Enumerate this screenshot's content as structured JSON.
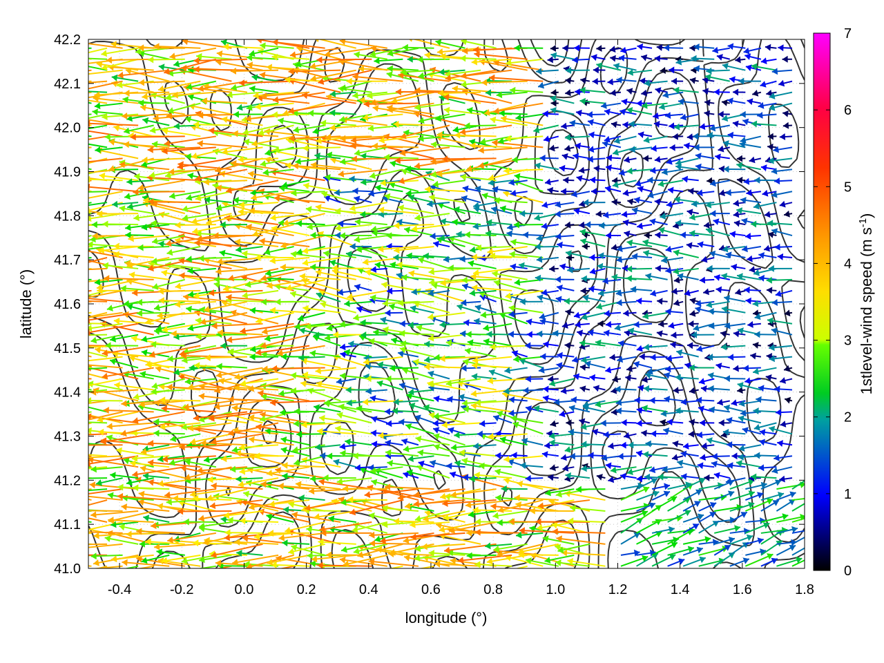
{
  "chart_data": {
    "type": "vector-field",
    "xlabel": "longitude (°)",
    "ylabel": "latitude (°)",
    "xlim": [
      -0.5,
      1.8
    ],
    "ylim": [
      41.0,
      42.2
    ],
    "x_ticks": [
      "-0.4",
      "-0.2",
      "0.0",
      "0.2",
      "0.4",
      "0.6",
      "0.8",
      "1.0",
      "1.2",
      "1.4",
      "1.6",
      "1.8"
    ],
    "y_ticks": [
      "41.0",
      "41.1",
      "41.2",
      "41.3",
      "41.4",
      "41.5",
      "41.6",
      "41.7",
      "41.8",
      "41.9",
      "42.0",
      "42.1",
      "42.2"
    ],
    "grid": true,
    "colorbar": {
      "label_main": "1stlevel-wind speed (m s",
      "label_sup": "-1",
      "label_end": ")",
      "range": [
        0,
        7
      ],
      "ticks": [
        "0",
        "1",
        "2",
        "3",
        "4",
        "5",
        "6",
        "7"
      ],
      "colors": [
        "#000000",
        "#0000ff",
        "#00a0a0",
        "#00dd00",
        "#ffff00",
        "#ff9900",
        "#ff0000",
        "#ff00ff"
      ]
    },
    "description_free": true,
    "wind_field_summary": [
      {
        "region": "west",
        "x_range": [
          -0.5,
          0.3
        ],
        "y_range": [
          41.0,
          42.2
        ],
        "direction_deg": 180,
        "speed_range": [
          2.0,
          4.8
        ]
      },
      {
        "region": "center",
        "x_range": [
          0.3,
          1.0
        ],
        "y_range": [
          41.2,
          41.9
        ],
        "direction_deg": 175,
        "speed_range": [
          1.0,
          3.5
        ]
      },
      {
        "region": "east",
        "x_range": [
          1.0,
          1.8
        ],
        "y_range": [
          41.2,
          42.2
        ],
        "direction_deg": 180,
        "speed_range": [
          0.2,
          2.0
        ]
      },
      {
        "region": "southeast",
        "x_range": [
          1.2,
          1.8
        ],
        "y_range": [
          41.0,
          41.2
        ],
        "direction_deg": 20,
        "speed_range": [
          1.2,
          2.5
        ]
      }
    ]
  }
}
